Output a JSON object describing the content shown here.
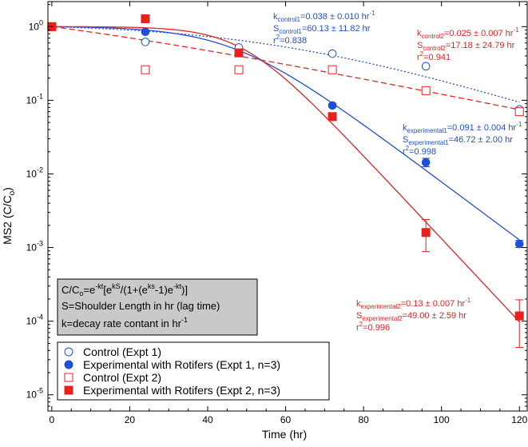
{
  "chart_data": {
    "type": "scatter",
    "x_axis": {
      "label": "Time (hr)",
      "lim": [
        -1,
        122
      ],
      "ticks": [
        0,
        20,
        40,
        60,
        80,
        100,
        120
      ]
    },
    "y_axis": {
      "label_main": "MS2 (C/C",
      "label_sub": "o",
      "label_end": ")",
      "scale": "log",
      "lim_log10": [
        -5.22,
        0.34
      ],
      "ticks": [
        {
          "exp": 0,
          "base": "10",
          "sup": "0"
        },
        {
          "exp": -1,
          "base": "10",
          "sup": "-1"
        },
        {
          "exp": -2,
          "base": "10",
          "sup": "-2"
        },
        {
          "exp": -3,
          "base": "10",
          "sup": "-3"
        },
        {
          "exp": -4,
          "base": "10",
          "sup": "-4"
        },
        {
          "exp": -5,
          "base": "10",
          "sup": "-5"
        }
      ]
    },
    "series": [
      {
        "name": "Control (Expt 1)",
        "marker": "circle-open",
        "color": "#1f4fd8",
        "points": [
          [
            0,
            1.0
          ],
          [
            24,
            0.62
          ],
          [
            48,
            0.52
          ],
          [
            72,
            0.43
          ],
          [
            96,
            0.29
          ],
          [
            120,
            0.075
          ]
        ],
        "fit": {
          "k": 0.038,
          "S": 60.13,
          "style": "dotted"
        }
      },
      {
        "name": "Experimental with Rotifers (Expt 1, n=3)",
        "marker": "circle-filled",
        "color": "#1f4fd8",
        "points": [
          [
            0,
            1.0
          ],
          [
            24,
            0.85
          ],
          [
            48,
            0.44
          ],
          [
            72,
            0.085
          ],
          [
            96,
            0.0143
          ],
          [
            120,
            0.00112
          ]
        ],
        "errors": [
          [
            0,
            0
          ],
          [
            0,
            0
          ],
          [
            0,
            0
          ],
          [
            0.08,
            0.09
          ],
          [
            0.0125,
            0.0163
          ],
          [
            0.001,
            0.00125
          ]
        ],
        "fit": {
          "k": 0.091,
          "S": 46.72,
          "style": "solid"
        }
      },
      {
        "name": "Control (Expt 2)",
        "marker": "square-open",
        "color": "#e8201e",
        "points": [
          [
            0,
            1.0
          ],
          [
            24,
            0.26
          ],
          [
            48,
            0.26
          ],
          [
            72,
            0.26
          ],
          [
            96,
            0.135
          ],
          [
            120,
            0.07
          ]
        ],
        "fit": {
          "k": 0.025,
          "S": 17.18,
          "style": "dashed"
        }
      },
      {
        "name": "Experimental with Rotifers (Expt 2, n=3)",
        "marker": "square-filled",
        "color": "#e8201e",
        "points": [
          [
            0,
            1.0
          ],
          [
            24,
            1.28
          ],
          [
            48,
            0.44
          ],
          [
            72,
            0.06
          ],
          [
            96,
            0.0016
          ],
          [
            120,
            0.000118
          ]
        ],
        "errors": [
          [
            0,
            0
          ],
          [
            0,
            0
          ],
          [
            0,
            0
          ],
          [
            0.056,
            0.064
          ],
          [
            0.00088,
            0.0024
          ],
          [
            4.4e-05,
            0.000195
          ]
        ],
        "fit": {
          "k": 0.13,
          "S": 49.0,
          "style": "solid"
        }
      }
    ],
    "annotations": {
      "control1": {
        "k_pre": "k",
        "k_sub": "control1",
        "k_val": "=0.038 ± 0.010 hr",
        "k_sup": "-1",
        "s_pre": "S",
        "s_sub": "control1",
        "s_val": "=60.13 ± 11.82 hr",
        "r_pre": "r",
        "r_sup": "2",
        "r_val": "=0.838"
      },
      "control2": {
        "k_pre": "k",
        "k_sub": "control2",
        "k_val": "=0.025 ± 0.007 hr",
        "k_sup": "-1",
        "s_pre": "S",
        "s_sub": "control2",
        "s_val": "=17.18 ± 24.79 hr",
        "r_pre": "r",
        "r_sup": "2",
        "r_val": "=0.941"
      },
      "experimental1": {
        "k_pre": "k",
        "k_sub": "experimental1",
        "k_val": "=0.091 ± 0.004 hr",
        "k_sup": "-1",
        "s_pre": "S",
        "s_sub": "experimental1",
        "s_val": "=46.72 ± 2.00 hr",
        "r_pre": "r",
        "r_sup": "2",
        "r_val": "=0.998"
      },
      "experimental2": {
        "k_pre": "k",
        "k_sub": "experimental2",
        "k_val": "=0.13 ± 0.007 hr",
        "k_sup": "-1",
        "s_pre": "S",
        "s_sub": "experimental2",
        "s_val": "=49.00 ± 2.59 hr",
        "r_pre": "r",
        "r_sup": "2",
        "r_val": "=0.996"
      }
    },
    "formula_box": {
      "line1": {
        "p1": "C/C",
        "sub_o": "o",
        "p2": "=e",
        "sup1": "-kt",
        "p3": "[e",
        "sup2": "kS",
        "p4": "/(1+(e",
        "sup3": "ks",
        "p5": "-1)e",
        "sup4": "-kt",
        "p6": ")]"
      },
      "line2": "S=Shoulder Length in hr (lag time)",
      "line3": {
        "text": "k=decay rate contant in hr",
        "sup": "-1"
      }
    },
    "legend": {
      "position": "bottom-left",
      "entries": [
        "Control (Expt 1)",
        "Experimental with Rotifers (Expt 1, n=3)",
        "Control (Expt 2)",
        "Experimental with Rotifers (Expt 2, n=3)"
      ]
    }
  }
}
